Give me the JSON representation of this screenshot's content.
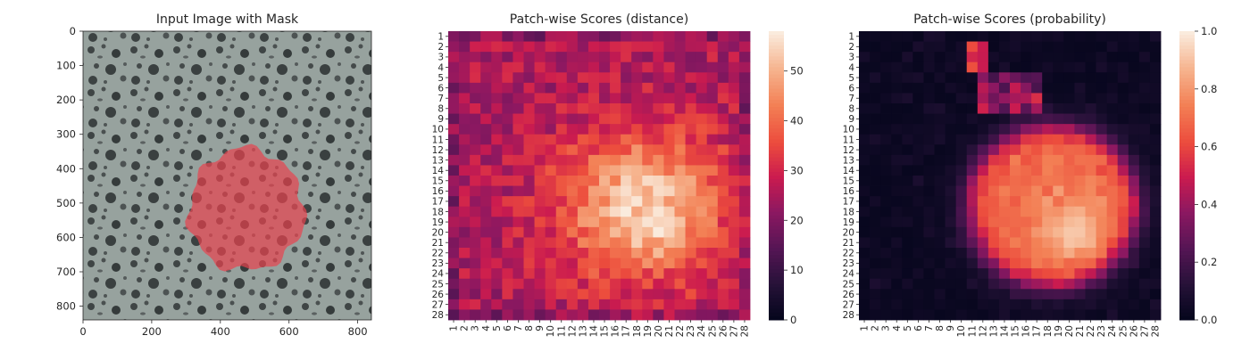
{
  "chart_data": [
    {
      "type": "image",
      "title": "Input Image with Mask",
      "xlim": [
        0,
        840
      ],
      "ylim": [
        840,
        0
      ],
      "xticks": [
        0,
        200,
        400,
        600,
        800
      ],
      "yticks": [
        0,
        100,
        200,
        300,
        400,
        500,
        600,
        700,
        800
      ],
      "mask": {
        "color": "#e8434e",
        "center": [
          475,
          520
        ],
        "radius": 168
      },
      "colors": {
        "texture_light": "#97a29e",
        "texture_dark": "#333838"
      }
    },
    {
      "type": "heatmap",
      "title": "Patch-wise Scores (distance)",
      "rows": 28,
      "cols": 28,
      "tick_labels": [
        "1",
        "2",
        "3",
        "4",
        "5",
        "6",
        "7",
        "8",
        "9",
        "10",
        "11",
        "12",
        "13",
        "14",
        "15",
        "16",
        "17",
        "18",
        "19",
        "20",
        "21",
        "22",
        "23",
        "24",
        "25",
        "26",
        "27",
        "28"
      ],
      "vmin": 0,
      "vmax": 58,
      "colorbar_ticks": [
        0,
        10,
        20,
        30,
        40,
        50
      ],
      "colormap": "rocket",
      "blob": {
        "center": [
          17.5,
          18.5
        ],
        "sigma": [
          5.2,
          5.6
        ],
        "peak": [
          20.0,
          20.5
        ]
      },
      "values_summary": {
        "background_min": 20,
        "background_max": 32,
        "peak": 58
      }
    },
    {
      "type": "heatmap",
      "title": "Patch-wise Scores (probability)",
      "rows": 28,
      "cols": 28,
      "tick_labels": [
        "1",
        "2",
        "3",
        "4",
        "5",
        "6",
        "7",
        "8",
        "9",
        "10",
        "11",
        "12",
        "13",
        "14",
        "15",
        "16",
        "17",
        "18",
        "19",
        "20",
        "21",
        "22",
        "23",
        "24",
        "25",
        "26",
        "27",
        "28"
      ],
      "vmin": 0.0,
      "vmax": 1.0,
      "colorbar_ticks": [
        "0.0",
        "0.2",
        "0.4",
        "0.6",
        "0.8",
        "1.0"
      ],
      "colormap": "rocket",
      "blob": {
        "center": [
          17.5,
          18.5
        ],
        "radius": 7.8,
        "peak": [
          20.0,
          20.5
        ]
      },
      "values_summary": {
        "background": 0.02,
        "mask_region": 0.7,
        "peak": 0.95
      }
    }
  ]
}
